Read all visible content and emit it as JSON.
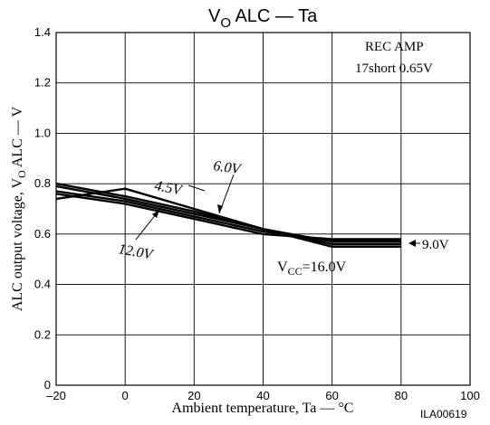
{
  "chart_data": {
    "type": "line",
    "title": {
      "main": "V",
      "sub": "O",
      "rest": " ALC — Ta"
    },
    "xlabel": "Ambient temperature, Ta — °C",
    "ylabel": {
      "pre": "ALC output voltage, V",
      "sub": "O",
      "post": " ALC — V"
    },
    "xlim": [
      -20,
      100
    ],
    "ylim": [
      0,
      1.4
    ],
    "x_ticks": [
      "–20",
      "0",
      "20",
      "40",
      "60",
      "80",
      "100"
    ],
    "y_ticks": [
      "0",
      "0.2",
      "0.4",
      "0.6",
      "0.8",
      "1.0",
      "1.2",
      "1.4"
    ],
    "grid": true,
    "code": "ILA00619",
    "condition": {
      "line1": "REC AMP",
      "line2": "17short 0.65V"
    },
    "series": [
      {
        "name": "4.5V",
        "x": [
          -20,
          0,
          20,
          40,
          60,
          80
        ],
        "values": [
          0.74,
          0.78,
          0.7,
          0.62,
          0.55,
          0.55
        ]
      },
      {
        "name": "6.0V",
        "x": [
          -20,
          0,
          20,
          40,
          60,
          80
        ],
        "values": [
          0.8,
          0.75,
          0.69,
          0.62,
          0.56,
          0.56
        ]
      },
      {
        "name": "9.0V",
        "x": [
          -20,
          0,
          20,
          40,
          60,
          80
        ],
        "values": [
          0.79,
          0.74,
          0.68,
          0.62,
          0.57,
          0.57
        ]
      },
      {
        "name": "12.0V",
        "x": [
          -20,
          0,
          20,
          40,
          60,
          80
        ],
        "values": [
          0.77,
          0.73,
          0.67,
          0.61,
          0.575,
          0.575
        ]
      },
      {
        "name": "VCC=16.0V",
        "x": [
          -20,
          0,
          20,
          40,
          60,
          80
        ],
        "values": [
          0.76,
          0.72,
          0.66,
          0.6,
          0.58,
          0.58
        ]
      }
    ],
    "labels": {
      "s45": "4.5V",
      "s60": "6.0V",
      "s90": "9.0V",
      "s120": "12.0V",
      "vcc_pre": "V",
      "vcc_sub": "CC",
      "vcc_post": "=16.0V"
    }
  }
}
